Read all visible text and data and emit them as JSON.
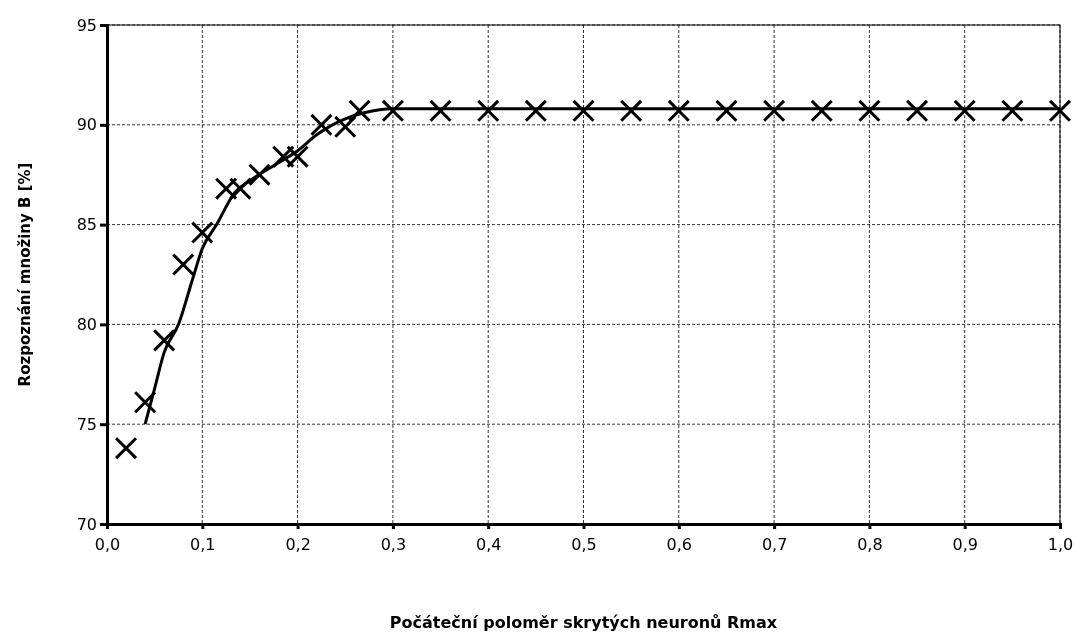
{
  "chart_data": {
    "type": "scatter",
    "xlabel": "Počáteční poloměr skrytých neuronů Rmax",
    "ylabel": "Rozpoznání množiny B [%]",
    "xlim": [
      0,
      1
    ],
    "xticks": [
      {
        "value": 0,
        "label": "0,0"
      },
      {
        "value": 0.1,
        "label": "0,1"
      },
      {
        "value": 0.2,
        "label": "0,2"
      },
      {
        "value": 0.3,
        "label": "0,3"
      },
      {
        "value": 0.4,
        "label": "0,4"
      },
      {
        "value": 0.5,
        "label": "0,5"
      },
      {
        "value": 0.6,
        "label": "0,6"
      },
      {
        "value": 0.7,
        "label": "0,7"
      },
      {
        "value": 0.8,
        "label": "0,8"
      },
      {
        "value": 0.9,
        "label": "0,9"
      },
      {
        "value": 1,
        "label": "1,0"
      }
    ],
    "ylim": [
      70,
      95
    ],
    "yticks": [
      70,
      75,
      80,
      85,
      90,
      95
    ],
    "grid": true,
    "marker": "cross",
    "series": [
      {
        "color": "#000000",
        "x": [
          0.02,
          0.04,
          0.06,
          0.08,
          0.1,
          0.125,
          0.14,
          0.16,
          0.185,
          0.2,
          0.225,
          0.25,
          0.265,
          0.3,
          0.35,
          0.4,
          0.45,
          0.5,
          0.55,
          0.6,
          0.65,
          0.7,
          0.75,
          0.8,
          0.85,
          0.9,
          0.95,
          1.0
        ],
        "values": [
          73.8,
          76.1,
          79.2,
          83.0,
          84.6,
          86.8,
          86.8,
          87.5,
          88.4,
          88.4,
          90.0,
          89.9,
          90.7,
          90.7,
          90.7,
          90.7,
          90.7,
          90.7,
          90.7,
          90.7,
          90.7,
          90.7,
          90.7,
          90.7,
          90.7,
          90.7,
          90.7,
          90.7
        ]
      },
      {
        "type": "line",
        "color": "#000000",
        "marker": "none",
        "line_style": "solid",
        "x": [
          0.04,
          0.05,
          0.06,
          0.075,
          0.09,
          0.1,
          0.115,
          0.134,
          0.15,
          0.18,
          0.2,
          0.22,
          0.25,
          0.27,
          0.3,
          1.0
        ],
        "values": [
          75,
          76.8,
          78.6,
          80,
          82.3,
          83.8,
          85,
          86.6,
          87.2,
          88.1,
          88.7,
          89.5,
          90.3,
          90.6,
          90.8,
          90.8
        ]
      }
    ]
  }
}
